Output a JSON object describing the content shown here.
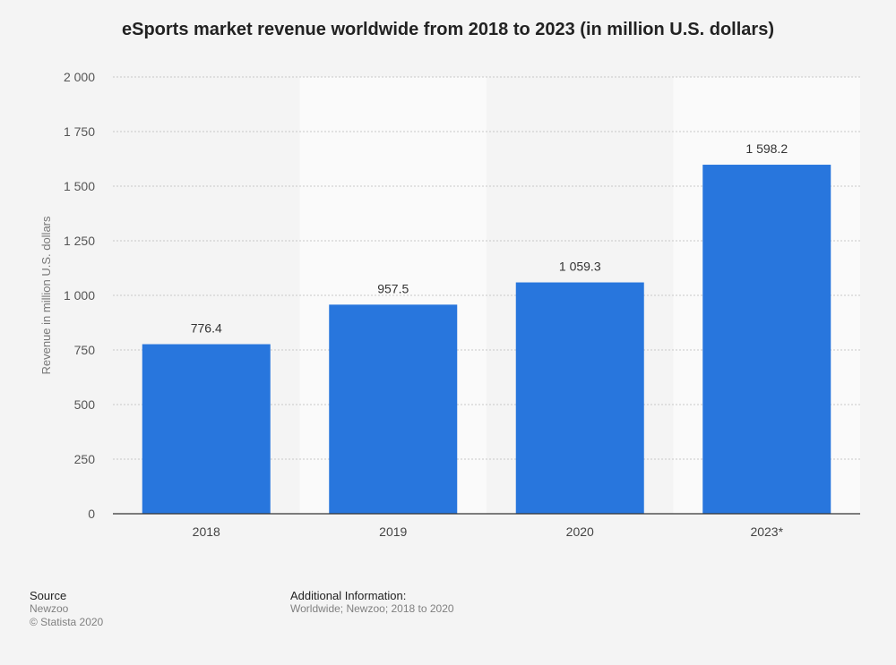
{
  "chart_data": {
    "type": "bar",
    "title": "eSports market revenue worldwide from 2018 to 2023 (in million U.S. dollars)",
    "xlabel": "",
    "ylabel": "Revenue in million U.S. dollars",
    "categories": [
      "2018",
      "2019",
      "2020",
      "2023*"
    ],
    "values": [
      776.4,
      957.5,
      1059.3,
      1598.2
    ],
    "value_labels": [
      "776.4",
      "957.5",
      "1 059.3",
      "1 598.2"
    ],
    "ylim": [
      0,
      2000
    ],
    "yticks": [
      0,
      250,
      500,
      750,
      1000,
      1250,
      1500,
      1750,
      2000
    ],
    "ytick_labels": [
      "0",
      "250",
      "500",
      "750",
      "1 000",
      "1 250",
      "1 500",
      "1 750",
      "2 000"
    ],
    "grid": true,
    "legend": "none",
    "bar_color": "#2876dd"
  },
  "footer": {
    "source_heading": "Source",
    "source_name": "Newzoo",
    "copyright": "© Statista 2020",
    "info_heading": "Additional Information:",
    "info_text": "Worldwide; Newzoo; 2018 to 2020"
  }
}
